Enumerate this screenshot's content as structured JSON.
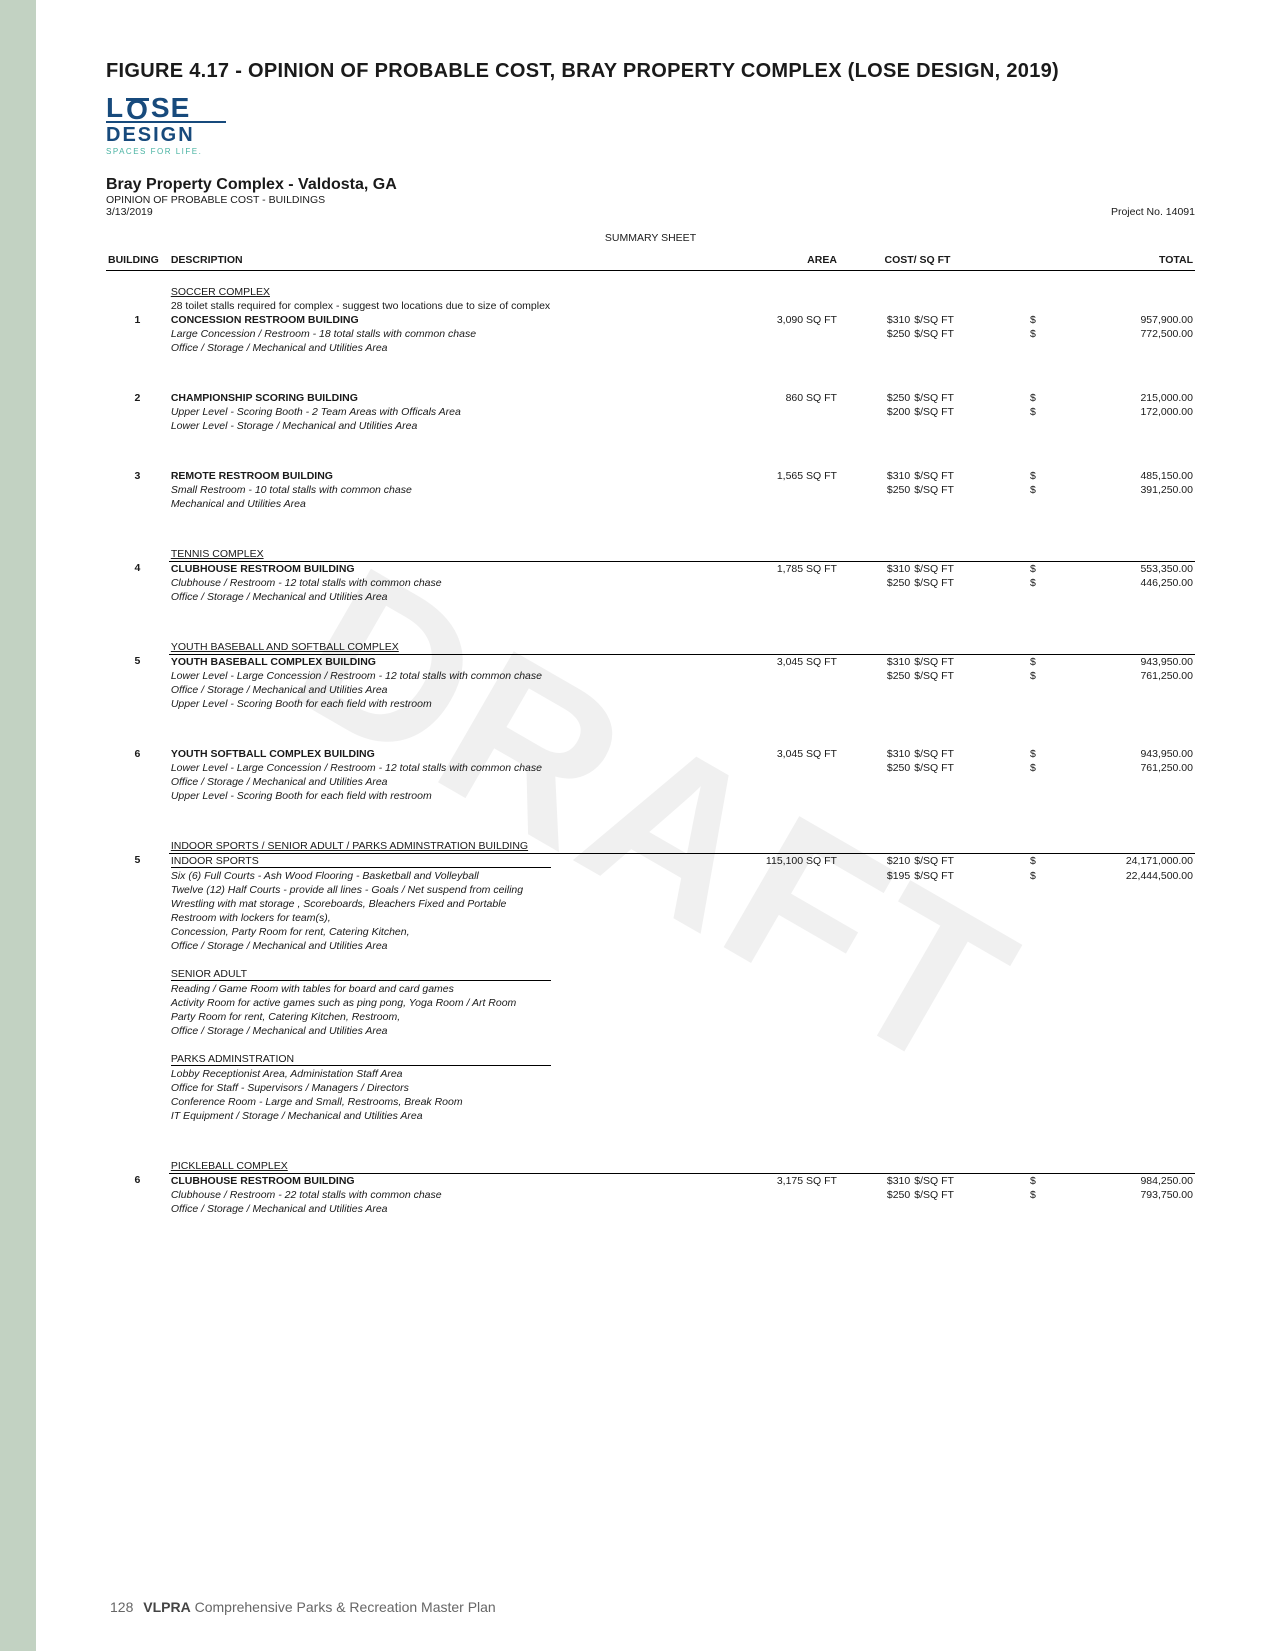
{
  "figure_title": "FIGURE 4.17 - OPINION OF PROBABLE COST, BRAY PROPERTY COMPLEX (LOSE DESIGN, 2019)",
  "logo": {
    "main": "LOSE",
    "sub": "DESIGN",
    "tag": "SPACES FOR LIFE."
  },
  "project": {
    "title": "Bray Property Complex - Valdosta, GA",
    "subtitle": "OPINION OF PROBABLE COST - BUILDINGS",
    "date": "3/13/2019",
    "project_no": "Project No. 14091"
  },
  "summary_label": "SUMMARY SHEET",
  "columns": {
    "building": "BUILDING",
    "description": "DESCRIPTION",
    "area": "AREA",
    "cost": "COST/ SQ FT",
    "total": "TOTAL"
  },
  "rows": [
    {
      "type": "section",
      "desc": "SOCCER COMPLEX"
    },
    {
      "type": "note",
      "desc": "28 toilet stalls required for complex - suggest two locations due to size of complex"
    },
    {
      "type": "line",
      "bld": "1",
      "desc": "CONCESSION RESTROOM BUILDING",
      "area": "3,090 SQ FT",
      "rate": "$310",
      "unit": "$/SQ FT",
      "sym": "$",
      "total": "957,900.00",
      "bold": true
    },
    {
      "type": "line",
      "desc": "Large Concession / Restroom - 18 total stalls with common chase",
      "rate": "$250",
      "unit": "$/SQ FT",
      "sym": "$",
      "total": "772,500.00",
      "italic": true
    },
    {
      "type": "note",
      "desc": "Office / Storage / Mechanical and Utilities Area",
      "italic": true
    },
    {
      "type": "gap"
    },
    {
      "type": "line",
      "bld": "2",
      "desc": "CHAMPIONSHIP SCORING BUILDING",
      "area": "860 SQ FT",
      "rate": "$250",
      "unit": "$/SQ FT",
      "sym": "$",
      "total": "215,000.00",
      "bold": true
    },
    {
      "type": "line",
      "desc": "Upper Level - Scoring Booth - 2 Team Areas with Officals Area",
      "rate": "$200",
      "unit": "$/SQ FT",
      "sym": "$",
      "total": "172,000.00",
      "italic": true
    },
    {
      "type": "note",
      "desc": "Lower Level - Storage / Mechanical and Utilities Area",
      "italic": true
    },
    {
      "type": "gap"
    },
    {
      "type": "line",
      "bld": "3",
      "desc": "REMOTE RESTROOM BUILDING",
      "area": "1,565 SQ FT",
      "rate": "$310",
      "unit": "$/SQ FT",
      "sym": "$",
      "total": "485,150.00",
      "bold": true
    },
    {
      "type": "line",
      "desc": "Small Restroom -  10 total stalls with common chase",
      "rate": "$250",
      "unit": "$/SQ FT",
      "sym": "$",
      "total": "391,250.00",
      "italic": true
    },
    {
      "type": "note",
      "desc": "Mechanical and Utilities Area",
      "italic": true
    },
    {
      "type": "gap"
    },
    {
      "type": "section",
      "desc": "TENNIS COMPLEX"
    },
    {
      "type": "line",
      "bld": "4",
      "desc": "CLUBHOUSE RESTROOM BUILDING",
      "area": "1,785 SQ FT",
      "rate": "$310",
      "unit": "$/SQ FT",
      "sym": "$",
      "total": "553,350.00",
      "bold": true,
      "rule": true
    },
    {
      "type": "line",
      "desc": "Clubhouse / Restroom - 12 total stalls with common chase",
      "rate": "$250",
      "unit": "$/SQ FT",
      "sym": "$",
      "total": "446,250.00",
      "italic": true
    },
    {
      "type": "note",
      "desc": "Office / Storage / Mechanical and Utilities Area",
      "italic": true
    },
    {
      "type": "gap"
    },
    {
      "type": "section",
      "desc": "YOUTH BASEBALL AND SOFTBALL COMPLEX"
    },
    {
      "type": "line",
      "bld": "5",
      "desc": "YOUTH BASEBALL COMPLEX BUILDING",
      "area": "3,045 SQ FT",
      "rate": "$310",
      "unit": "$/SQ FT",
      "sym": "$",
      "total": "943,950.00",
      "bold": true,
      "rule": true
    },
    {
      "type": "line",
      "desc": "Lower Level - Large Concession / Restroom - 12 total stalls with common chase",
      "rate": "$250",
      "unit": "$/SQ FT",
      "sym": "$",
      "total": "761,250.00",
      "italic": true
    },
    {
      "type": "note",
      "desc": "Office / Storage / Mechanical and Utilities Area",
      "italic": true
    },
    {
      "type": "note",
      "desc": "Upper Level - Scoring Booth  for  each field with restroom",
      "italic": true
    },
    {
      "type": "gap"
    },
    {
      "type": "line",
      "bld": "6",
      "desc": "YOUTH SOFTBALL COMPLEX BUILDING",
      "area": "3,045 SQ FT",
      "rate": "$310",
      "unit": "$/SQ FT",
      "sym": "$",
      "total": "943,950.00",
      "bold": true
    },
    {
      "type": "line",
      "desc": "Lower Level - Large Concession / Restroom - 12 total stalls with common chase",
      "rate": "$250",
      "unit": "$/SQ FT",
      "sym": "$",
      "total": "761,250.00",
      "italic": true
    },
    {
      "type": "note",
      "desc": "Office / Storage / Mechanical and Utilities Area",
      "italic": true
    },
    {
      "type": "note",
      "desc": "Upper Level - Scoring Booth  for  each field with restroom",
      "italic": true
    },
    {
      "type": "gap"
    },
    {
      "type": "section",
      "desc": "INDOOR SPORTS / SENIOR ADULT / PARKS ADMINSTRATION BUILDING"
    },
    {
      "type": "line",
      "bld": "5",
      "desc": "INDOOR SPORTS",
      "area": "115,100 SQ FT",
      "rate": "$210",
      "unit": "$/SQ FT",
      "sym": "$",
      "total": "24,171,000.00",
      "rule": true,
      "sub_underline": true
    },
    {
      "type": "line",
      "desc": "Six (6) Full Courts - Ash Wood Flooring - Basketball and Volleyball",
      "rate": "$195",
      "unit": "$/SQ FT",
      "sym": "$",
      "total": "22,444,500.00",
      "italic": true
    },
    {
      "type": "note",
      "desc": "Twelve (12) Half Courts -  provide all lines - Goals / Net suspend from ceiling",
      "italic": true
    },
    {
      "type": "note",
      "desc": "Wrestling  with mat storage , Scoreboards, Bleachers Fixed and Portable",
      "italic": true
    },
    {
      "type": "note",
      "desc": "Restroom with lockers for team(s),",
      "italic": true
    },
    {
      "type": "note",
      "desc": "Concession, Party Room for rent, Catering Kitchen,",
      "italic": true
    },
    {
      "type": "note",
      "desc": "Office / Storage / Mechanical and Utilities Area",
      "italic": true
    },
    {
      "type": "mgap"
    },
    {
      "type": "subheader",
      "desc": "SENIOR ADULT"
    },
    {
      "type": "note",
      "desc": "Reading / Game Room with tables for board and card games",
      "italic": true
    },
    {
      "type": "note",
      "desc": "Activity Room for active games such as ping pong, Yoga Room / Art Room",
      "italic": true
    },
    {
      "type": "note",
      "desc": "Party Room for rent, Catering Kitchen,  Restroom,",
      "italic": true
    },
    {
      "type": "note",
      "desc": "Office / Storage / Mechanical and Utilities Area",
      "italic": true
    },
    {
      "type": "mgap"
    },
    {
      "type": "subheader",
      "desc": " PARKS ADMINSTRATION"
    },
    {
      "type": "note",
      "desc": "Lobby Receptionist Area, Administation Staff Area",
      "italic": true
    },
    {
      "type": "note",
      "desc": "Office for Staff -  Supervisors / Managers / Directors",
      "italic": true
    },
    {
      "type": "note",
      "desc": "Conference Room - Large and Small, Restrooms, Break Room",
      "italic": true
    },
    {
      "type": "note",
      "desc": "IT Equipment / Storage / Mechanical and Utilities Area",
      "italic": true
    },
    {
      "type": "gap"
    },
    {
      "type": "section",
      "desc": "PICKLEBALL COMPLEX"
    },
    {
      "type": "line",
      "bld": "6",
      "desc": "CLUBHOUSE RESTROOM BUILDING",
      "area": "3,175 SQ FT",
      "rate": "$310",
      "unit": "$/SQ FT",
      "sym": "$",
      "total": "984,250.00",
      "bold": true,
      "rule": true
    },
    {
      "type": "line",
      "desc": "Clubhouse / Restroom - 22 total stalls with common chase",
      "rate": "$250",
      "unit": "$/SQ FT",
      "sym": "$",
      "total": "793,750.00",
      "italic": true
    },
    {
      "type": "note",
      "desc": "Office / Storage / Mechanical and Utilities Area",
      "italic": true
    }
  ],
  "footer": {
    "page": "128",
    "bold": "VLPRA",
    "rest": " Comprehensive Parks & Recreation Master Plan"
  },
  "watermark": "DRAFT"
}
